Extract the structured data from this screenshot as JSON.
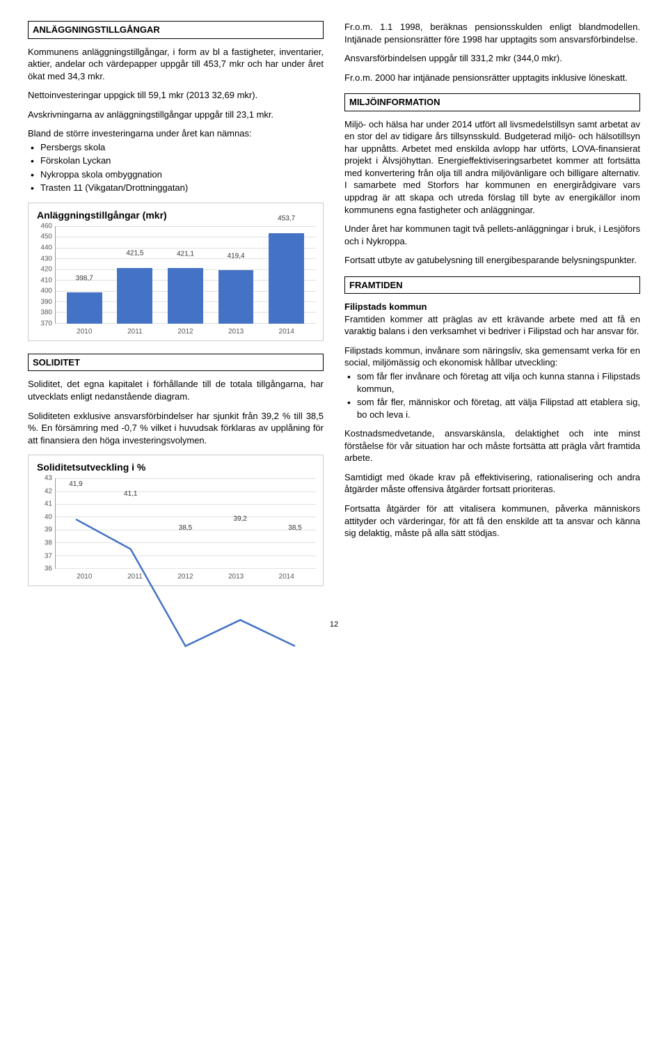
{
  "left": {
    "h1": "ANLÄGGNINGSTILLGÅNGAR",
    "p1": "Kommunens anläggningstillgångar, i form av bl a fastigheter, inventarier, aktier, andelar och värdepapper uppgår till 453,7 mkr och har under året ökat med 34,3 mkr.",
    "p2": "Nettoinvesteringar uppgick till 59,1 mkr (2013 32,69 mkr).",
    "p3": "Avskrivningarna av anläggningstillgångar uppgår till 23,1 mkr.",
    "p4": "Bland de större investeringarna under året kan nämnas:",
    "bullets1": [
      "Persbergs skola",
      "Förskolan Lyckan",
      "Nykroppa skola ombyggnation",
      "Trasten 11 (Vikgatan/Drottninggatan)"
    ],
    "chart1": {
      "type": "bar",
      "title": "Anläggningstillgångar (mkr)",
      "categories": [
        "2010",
        "2011",
        "2012",
        "2013",
        "2014"
      ],
      "values": [
        398.7,
        421.5,
        421.1,
        419.4,
        453.7
      ],
      "value_labels": [
        "398,7",
        "421,5",
        "421,1",
        "419,4",
        "453,7"
      ],
      "ylim": [
        370,
        460
      ],
      "yticks": [
        370,
        380,
        390,
        400,
        410,
        420,
        430,
        440,
        450,
        460
      ],
      "bar_color": "#4472c4",
      "grid_color": "#e0e0e0",
      "background_color": "#ffffff",
      "title_fontsize": 14,
      "label_fontsize": 10
    },
    "h2": "SOLIDITET",
    "p5": "Soliditet, det egna kapitalet i förhållande till de totala tillgångarna, har utvecklats enligt nedanstående diagram.",
    "p6": "Soliditeten exklusive ansvarsförbindelser har sjunkit från 39,2 % till 38,5 %. En försämring med -0,7 % vilket i huvudsak förklaras av upplåning för att finansiera den höga investeringsvolymen.",
    "chart2": {
      "type": "line",
      "title": "Soliditetsutveckling i %",
      "categories": [
        "2010",
        "2011",
        "2012",
        "2013",
        "2014"
      ],
      "values": [
        41.9,
        41.1,
        38.5,
        39.2,
        38.5
      ],
      "value_labels": [
        "41,9",
        "41,1",
        "38,5",
        "39,2",
        "38,5"
      ],
      "ylim": [
        36,
        43
      ],
      "yticks": [
        36,
        37,
        38,
        39,
        40,
        41,
        42,
        43
      ],
      "line_color": "#4472c4",
      "line_width": 2.5,
      "grid_color": "#e0e0e0",
      "background_color": "#ffffff",
      "title_fontsize": 14,
      "label_fontsize": 10
    }
  },
  "right": {
    "p1": "Fr.o.m. 1.1 1998, beräknas pensionsskulden enligt blandmodellen. Intjänade pensionsrätter före 1998 har upptagits som ansvarsförbindelse.",
    "p2": "Ansvarsförbindelsen uppgår till 331,2 mkr (344,0 mkr).",
    "p3": "Fr.o.m. 2000 har intjänade pensionsrätter upptagits inklusive löneskatt.",
    "h1": "MILJÖINFORMATION",
    "p4": "Miljö- och hälsa har under 2014 utfört all livsmedelstillsyn samt arbetat av en stor del av tidigare års tillsynsskuld. Budgeterad miljö- och hälsotillsyn har uppnåtts. Arbetet med enskilda avlopp har utförts, LOVA-finansierat projekt i Älvsjöhyttan. Energieffektiviseringsarbetet kommer att fortsätta med konvertering från olja till andra miljövänligare och billigare alternativ. I samarbete med Storfors har kommunen en energirådgivare vars uppdrag är att skapa och utreda förslag till byte av energikällor inom kommunens egna fastigheter och anläggningar.",
    "p5": "Under året har kommunen tagit två pellets-anläggningar i bruk, i Lesjöfors och i Nykroppa.",
    "p6": "Fortsatt utbyte av gatubelysning till energibesparande belysningspunkter.",
    "h2": "FRAMTIDEN",
    "p7_bold": "Filipstads kommun",
    "p7": "Framtiden kommer att präglas av ett krävande arbete med att få en varaktig balans i den verksamhet vi bedriver i Filipstad och har ansvar för.",
    "p8": "Filipstads kommun, invånare som näringsliv, ska gemensamt verka för en social, miljömässig och ekonomisk hållbar utveckling:",
    "bullets2": [
      "som får fler invånare och företag att vilja och kunna stanna i Filipstads kommun,",
      "som får fler, människor och företag, att välja Filipstad att etablera sig, bo och leva i."
    ],
    "p9": "Kostnadsmedvetande, ansvarskänsla, delaktighet och inte minst förståelse för vår situation har och måste fortsätta att prägla vårt framtida arbete.",
    "p10": "Samtidigt med ökade krav på effektivisering, rationalisering och andra åtgärder måste offensiva åtgärder fortsatt prioriteras.",
    "p11": "Fortsatta åtgärder för att vitalisera kommunen, påverka människors attityder och värderingar, för att få den enskilde att ta ansvar och känna sig delaktig, måste på alla sätt stödjas."
  },
  "page_number": "12"
}
